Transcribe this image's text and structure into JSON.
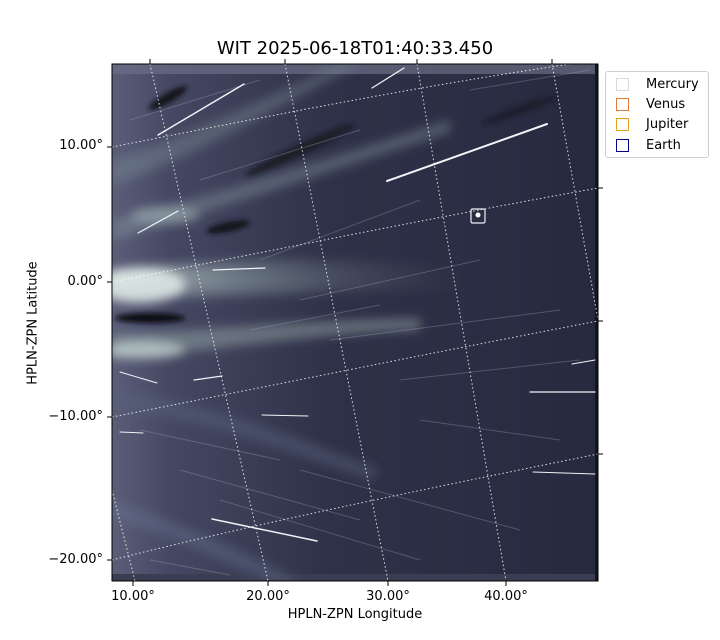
{
  "title": "WIT 2025-06-18T01:40:33.450",
  "xlabel": "HPLN-ZPN Longitude",
  "ylabel": "HPLN-ZPN Latitude",
  "y_ticks": [
    "10.00°",
    "0.00°",
    "−10.00°",
    "−20.00°"
  ],
  "x_ticks": [
    "10.00°",
    "20.00°",
    "30.00°",
    "40.00°"
  ],
  "legend": [
    {
      "label": "Mercury",
      "color": "#d9d9d9"
    },
    {
      "label": "Venus",
      "color": "#e07b39"
    },
    {
      "label": "Jupiter",
      "color": "#e3a21a"
    },
    {
      "label": "Earth",
      "color": "#00008b"
    }
  ],
  "colors": {
    "image_background": "#2f3148",
    "streamer": "#c9d8d6",
    "grid": "#ffffff"
  }
}
